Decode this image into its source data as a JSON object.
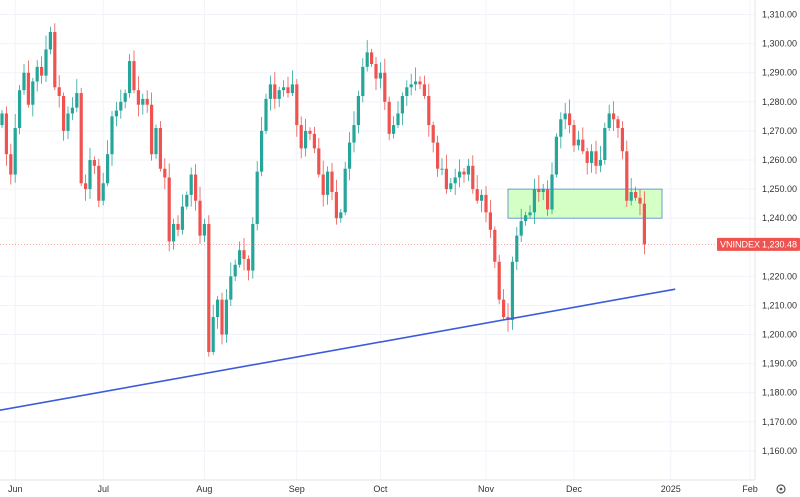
{
  "chart_data": {
    "type": "candlestick",
    "symbol": "VNINDEX",
    "last_price": "1,230.48",
    "y_range": [
      1150,
      1315
    ],
    "y_ticks": [
      {
        "value": 1310,
        "label": "1,310.00"
      },
      {
        "value": 1300,
        "label": "1,300.00"
      },
      {
        "value": 1290,
        "label": "1,290.00"
      },
      {
        "value": 1280,
        "label": "1,280.00"
      },
      {
        "value": 1270,
        "label": "1,270.00"
      },
      {
        "value": 1260,
        "label": "1,260.00"
      },
      {
        "value": 1250,
        "label": "1,250.00"
      },
      {
        "value": 1240,
        "label": "1,240.00"
      },
      {
        "value": 1220,
        "label": "1,220.00"
      },
      {
        "value": 1210,
        "label": "1,210.00"
      },
      {
        "value": 1200,
        "label": "1,200.00"
      },
      {
        "value": 1190,
        "label": "1,190.00"
      },
      {
        "value": 1180,
        "label": "1,180.00"
      },
      {
        "value": 1170,
        "label": "1,170.00"
      },
      {
        "value": 1160,
        "label": "1,160.00"
      }
    ],
    "x_range": [
      0,
      180
    ],
    "x_ticks": [
      {
        "label": "Jun",
        "bar": 3
      },
      {
        "label": "Jul",
        "bar": 23
      },
      {
        "label": "Aug",
        "bar": 46
      },
      {
        "label": "Sep",
        "bar": 67
      },
      {
        "label": "Oct",
        "bar": 86
      },
      {
        "label": "Nov",
        "bar": 110
      },
      {
        "label": "Dec",
        "bar": 130
      },
      {
        "label": "2025",
        "bar": 152
      },
      {
        "label": "Feb",
        "bar": 170
      }
    ],
    "closes": [
      1276,
      1262,
      1255,
      1271,
      1284,
      1290,
      1279,
      1287,
      1292,
      1289,
      1298,
      1304,
      1285,
      1282,
      1270,
      1276,
      1278,
      1283,
      1252,
      1250,
      1260,
      1258,
      1246,
      1252,
      1262,
      1275,
      1277,
      1280,
      1283,
      1294,
      1284,
      1279,
      1281,
      1279,
      1262,
      1271,
      1257,
      1254,
      1232,
      1238,
      1236,
      1244,
      1248,
      1255,
      1246,
      1234,
      1238,
      1194,
      1206,
      1212,
      1200,
      1212,
      1220,
      1224,
      1229,
      1226,
      1222,
      1238,
      1256,
      1270,
      1281,
      1286,
      1281,
      1284,
      1285,
      1283,
      1286,
      1272,
      1264,
      1270,
      1269,
      1264,
      1255,
      1248,
      1256,
      1249,
      1240,
      1242,
      1257,
      1266,
      1272,
      1282,
      1292,
      1297,
      1293,
      1288,
      1290,
      1280,
      1269,
      1272,
      1276,
      1282,
      1285,
      1286,
      1287,
      1286,
      1282,
      1272,
      1266,
      1257,
      1257,
      1250,
      1252,
      1254,
      1256,
      1255,
      1258,
      1250,
      1246,
      1248,
      1242,
      1236,
      1225,
      1212,
      1206,
      1205,
      1225,
      1234,
      1239,
      1241,
      1242,
      1250,
      1249,
      1250,
      1243,
      1255,
      1268,
      1274,
      1276,
      1272,
      1265,
      1267,
      1263,
      1259,
      1263,
      1258,
      1260,
      1271,
      1276,
      1274,
      1271,
      1263,
      1246,
      1249,
      1247,
      1245,
      1231
    ],
    "trendlines": [
      {
        "name": "rising-support",
        "from": {
          "bar": -3,
          "value": 1173.3
        },
        "to": {
          "bar": 153,
          "value": 1215.6
        },
        "color": "#3b5bdb"
      }
    ],
    "zones": [
      {
        "name": "support-zone",
        "bar_from": 115,
        "bar_to": 150,
        "low": 1240,
        "high": 1250,
        "fill": "#ccffbb",
        "stroke": "#4c86c8"
      }
    ],
    "colors": {
      "up": "#26a69a",
      "down": "#ef5350",
      "grid": "#f0f3fa",
      "axis_text": "#333333",
      "badge": "#ef5350"
    }
  },
  "ui": {
    "settings_icon": "gear-icon"
  }
}
